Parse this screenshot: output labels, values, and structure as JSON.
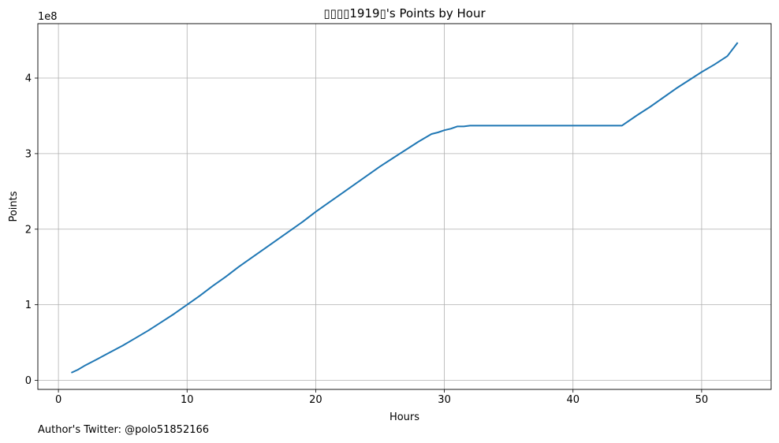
{
  "chart_data": {
    "type": "line",
    "title": "▯▯▯▯1919▯'s Points by Hour",
    "xlabel": "Hours",
    "ylabel": "Points",
    "y_offset_label": "1e8",
    "xlim": [
      -1.6,
      55.4
    ],
    "ylim": [
      -0.12,
      4.72
    ],
    "x_ticks": [
      0,
      10,
      20,
      30,
      40,
      50
    ],
    "y_ticks": [
      0,
      1,
      2,
      3,
      4
    ],
    "grid": true,
    "line_color": "#1f77b4",
    "series": [
      {
        "x": [
          1.0,
          1.5,
          2.0,
          3.0,
          4.0,
          5.0,
          6.0,
          7.0,
          8.0,
          9.0,
          10.0,
          11.0,
          12.0,
          13.0,
          14.0,
          15.0,
          16.0,
          17.0,
          18.0,
          19.0,
          20.0,
          21.0,
          22.0,
          23.0,
          24.0,
          25.0,
          26.0,
          27.0,
          28.0,
          29.0,
          29.5,
          30.0,
          30.5,
          31.0,
          31.5,
          32.0,
          35.0,
          40.0,
          43.8,
          45.0,
          46.0,
          47.0,
          48.0,
          49.0,
          50.0,
          51.0,
          52.0,
          52.8
        ],
        "y": [
          0.1,
          0.14,
          0.19,
          0.28,
          0.37,
          0.46,
          0.56,
          0.66,
          0.77,
          0.88,
          1.0,
          1.12,
          1.25,
          1.37,
          1.5,
          1.62,
          1.74,
          1.86,
          1.98,
          2.1,
          2.23,
          2.35,
          2.47,
          2.59,
          2.71,
          2.83,
          2.94,
          3.05,
          3.16,
          3.26,
          3.28,
          3.31,
          3.33,
          3.36,
          3.36,
          3.37,
          3.37,
          3.37,
          3.37,
          3.51,
          3.62,
          3.74,
          3.86,
          3.97,
          4.08,
          4.18,
          4.29,
          4.47
        ]
      }
    ]
  },
  "footer_text": "Author's Twitter: @polo51852166"
}
